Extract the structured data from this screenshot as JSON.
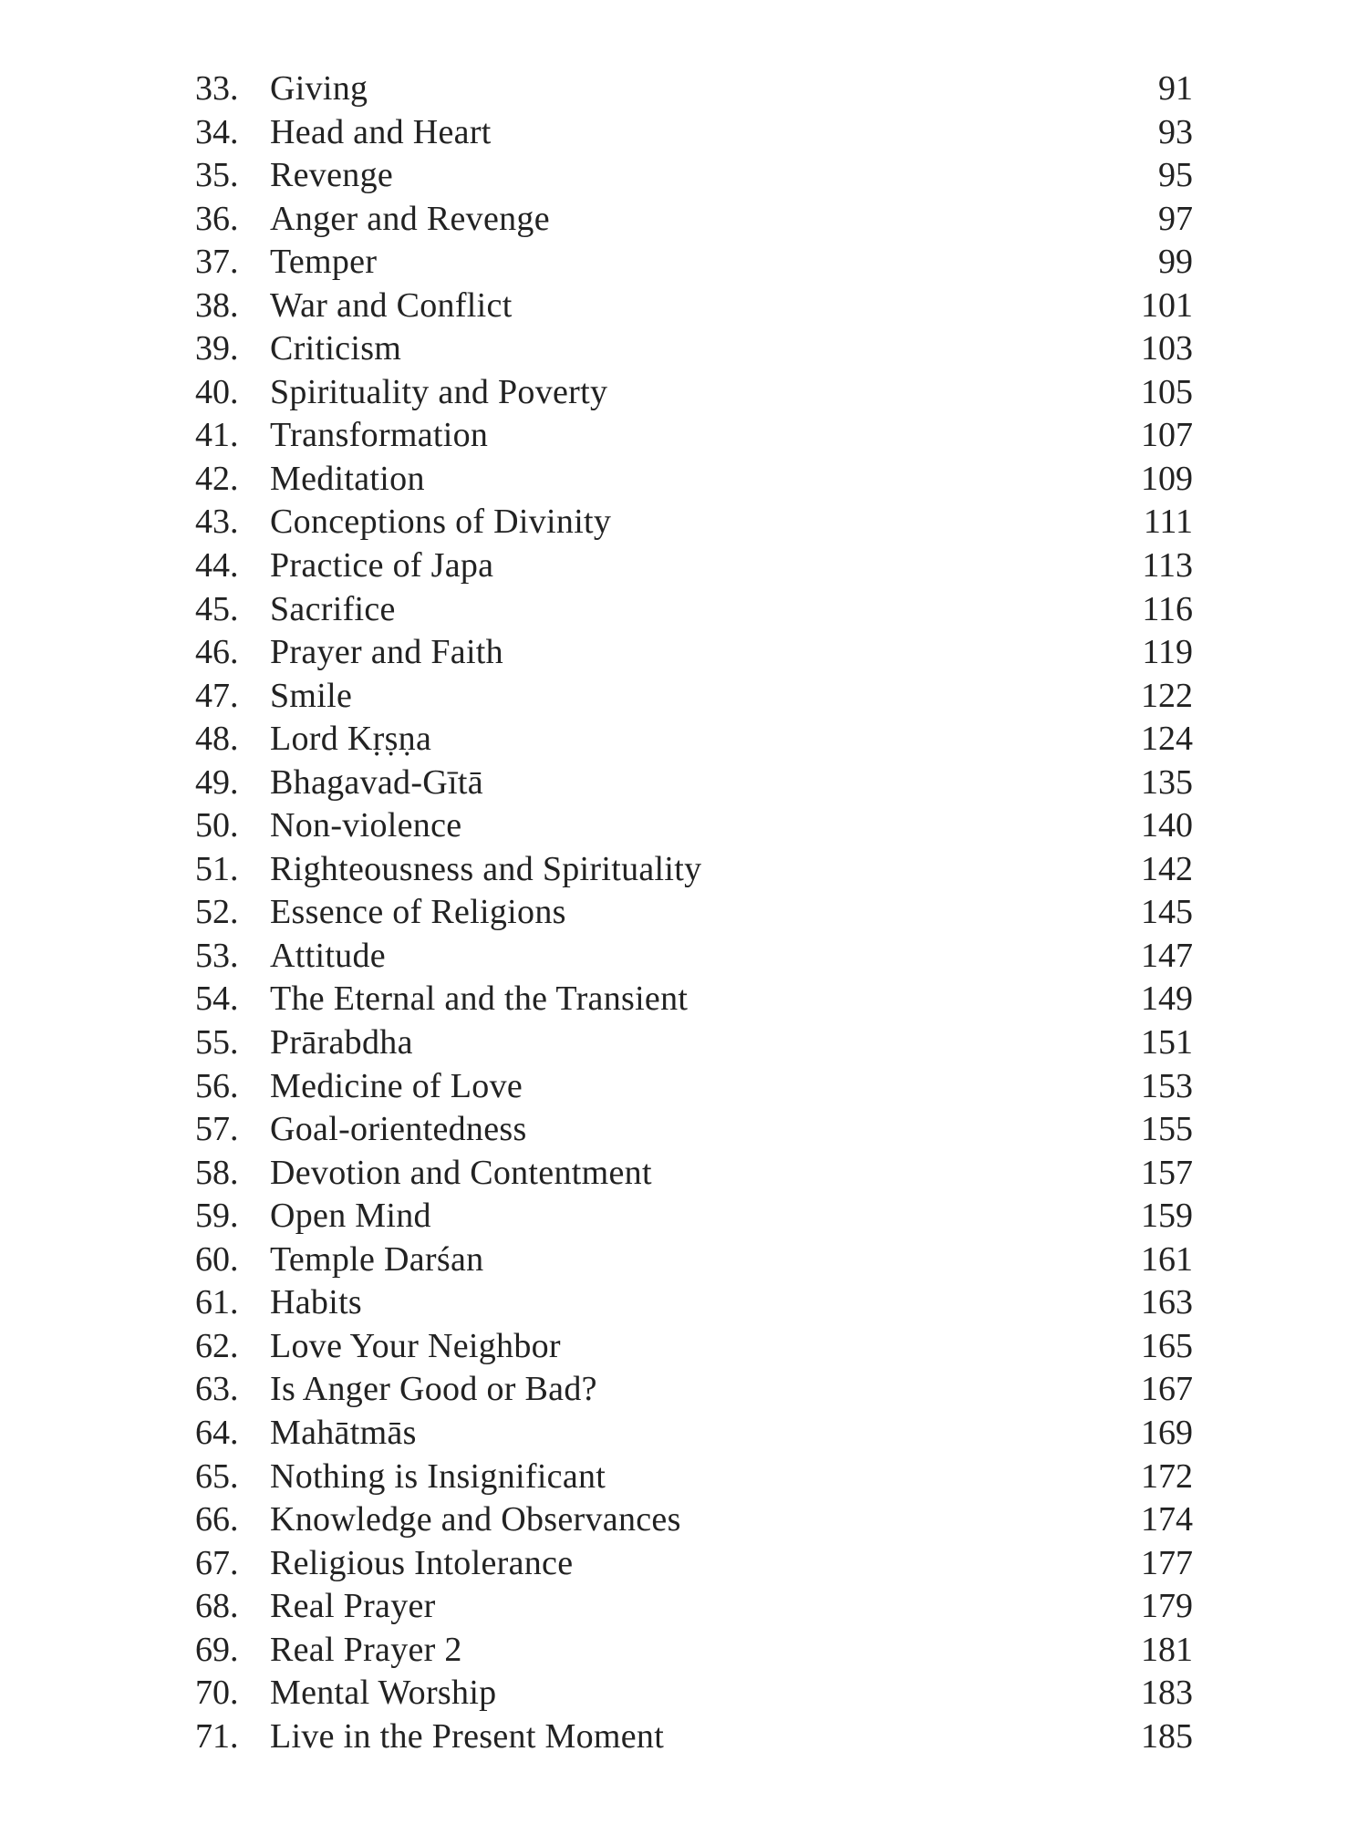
{
  "toc": {
    "entries": [
      {
        "num": "33.",
        "title": "Giving",
        "page": "91"
      },
      {
        "num": "34.",
        "title": "Head and Heart",
        "page": "93"
      },
      {
        "num": "35.",
        "title": "Revenge",
        "page": "95"
      },
      {
        "num": "36.",
        "title": "Anger and Revenge",
        "page": "97"
      },
      {
        "num": "37.",
        "title": "Temper",
        "page": "99"
      },
      {
        "num": "38.",
        "title": "War and Conflict",
        "page": "101"
      },
      {
        "num": "39.",
        "title": "Criticism",
        "page": "103"
      },
      {
        "num": "40.",
        "title": "Spirituality and Poverty",
        "page": "105"
      },
      {
        "num": "41.",
        "title": "Transformation",
        "page": "107"
      },
      {
        "num": "42.",
        "title": "Meditation",
        "page": "109"
      },
      {
        "num": "43.",
        "title": "Conceptions of Divinity",
        "page": "111"
      },
      {
        "num": "44.",
        "title": "Practice of Japa",
        "page": "113"
      },
      {
        "num": "45.",
        "title": "Sacrifice",
        "page": "116"
      },
      {
        "num": "46.",
        "title": "Prayer and Faith",
        "page": "119"
      },
      {
        "num": "47.",
        "title": "Smile",
        "page": "122"
      },
      {
        "num": "48.",
        "title": "Lord Kṛṣṇa",
        "page": "124"
      },
      {
        "num": "49.",
        "title": "Bhagavad-Gītā",
        "page": "135"
      },
      {
        "num": "50.",
        "title": "Non-violence",
        "page": "140"
      },
      {
        "num": "51.",
        "title": "Righteousness and Spirituality",
        "page": "142"
      },
      {
        "num": "52.",
        "title": "Essence of Religions",
        "page": "145"
      },
      {
        "num": "53.",
        "title": "Attitude",
        "page": "147"
      },
      {
        "num": "54.",
        "title": "The Eternal and the Transient",
        "page": "149"
      },
      {
        "num": "55.",
        "title": "Prārabdha",
        "page": "151"
      },
      {
        "num": "56.",
        "title": "Medicine of Love",
        "page": "153"
      },
      {
        "num": "57.",
        "title": "Goal-orientedness",
        "page": "155"
      },
      {
        "num": "58.",
        "title": "Devotion and Contentment",
        "page": "157"
      },
      {
        "num": "59.",
        "title": "Open Mind",
        "page": "159"
      },
      {
        "num": "60.",
        "title": "Temple Darśan",
        "page": "161"
      },
      {
        "num": "61.",
        "title": "Habits",
        "page": "163"
      },
      {
        "num": "62.",
        "title": "Love Your Neighbor",
        "page": "165"
      },
      {
        "num": "63.",
        "title": "Is Anger Good or Bad?",
        "page": "167"
      },
      {
        "num": "64.",
        "title": "Mahātmās",
        "page": "169"
      },
      {
        "num": "65.",
        "title": "Nothing is Insignificant",
        "page": "172"
      },
      {
        "num": "66.",
        "title": "Knowledge and Observances",
        "page": "174"
      },
      {
        "num": "67.",
        "title": "Religious Intolerance",
        "page": "177"
      },
      {
        "num": "68.",
        "title": "Real Prayer",
        "page": "179"
      },
      {
        "num": "69.",
        "title": "Real Prayer 2",
        "page": "181"
      },
      {
        "num": "70.",
        "title": "Mental Worship",
        "page": "183"
      },
      {
        "num": "71.",
        "title": "Live in the Present Moment",
        "page": "185"
      }
    ]
  }
}
